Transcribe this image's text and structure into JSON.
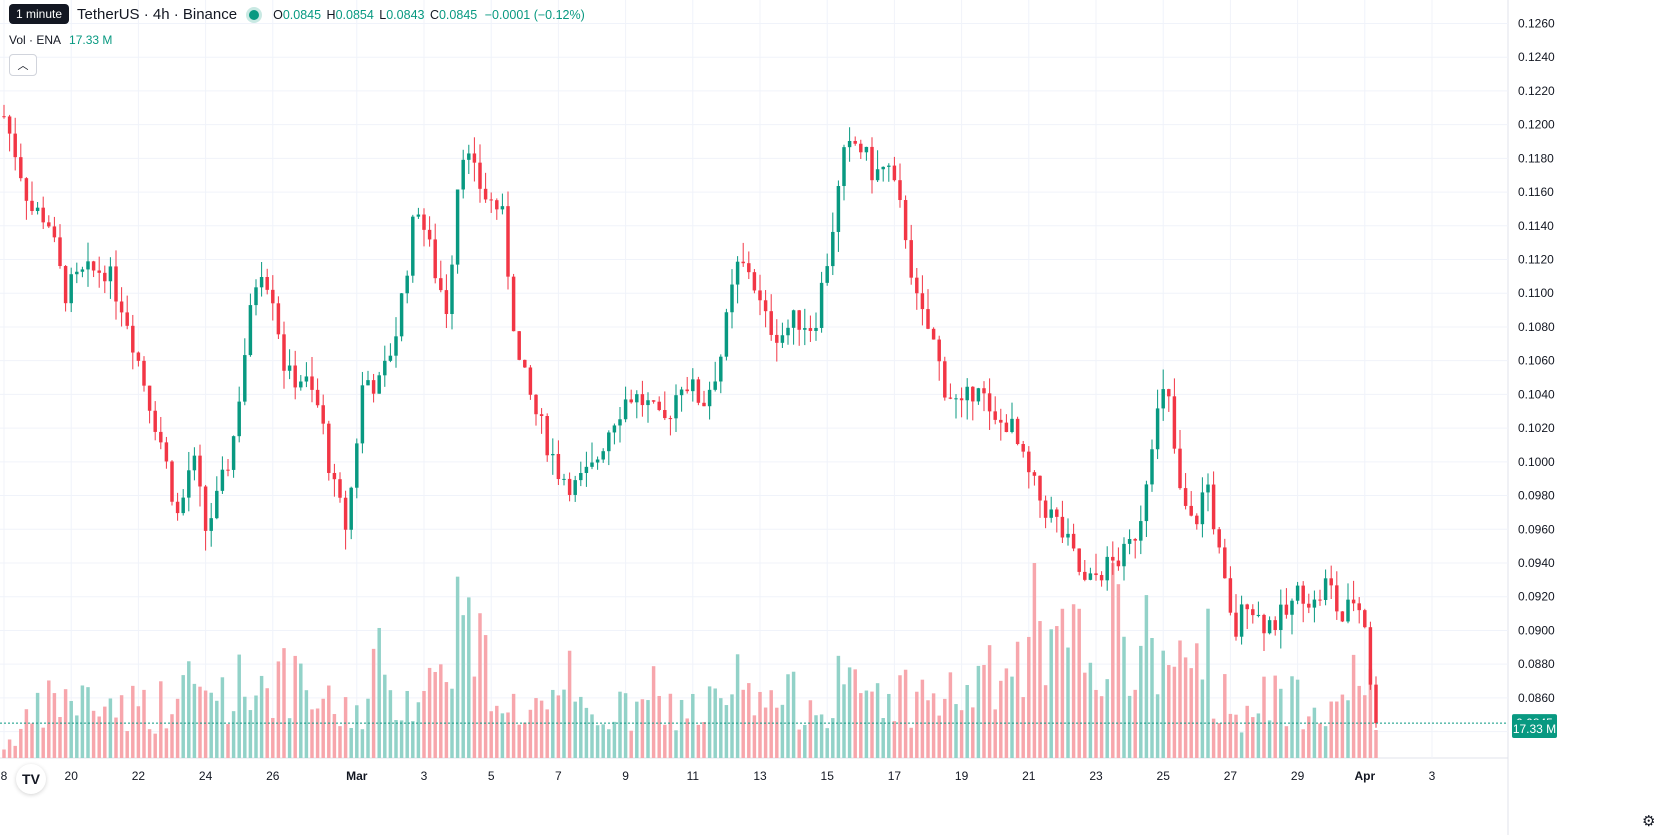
{
  "tooltip": {
    "text": "1 minute"
  },
  "header": {
    "symbol_title": "TetherUS · 4h · Binance",
    "ohlc": [
      {
        "key": "O",
        "value": "0.0845"
      },
      {
        "key": "H",
        "value": "0.0854"
      },
      {
        "key": "L",
        "value": "0.0843"
      },
      {
        "key": "C",
        "value": "0.0845"
      }
    ],
    "change": "−0.0001 (−0.12%)"
  },
  "volume_legend": {
    "label": "Vol · ENA",
    "value": "17.33 M"
  },
  "price_badge": {
    "text": "0.0845"
  },
  "volume_badge": {
    "text": "17.33 M"
  },
  "logo": {
    "text": "TV"
  },
  "colors": {
    "up": "#089981",
    "down": "#f23645",
    "up_volume": "#92d2c8",
    "down_volume": "#f7a6ac",
    "grid": "#f0f3fa",
    "text": "#131722"
  },
  "icons": {
    "collapse": "chevron-up-icon",
    "settings": "gear-icon",
    "logo": "tradingview-logo-icon"
  },
  "chart_data": {
    "type": "candlestick",
    "y_axis": {
      "range": [
        0.0828,
        0.127
      ],
      "ticks": [
        "0.1260",
        "0.1240",
        "0.1220",
        "0.1200",
        "0.1180",
        "0.1160",
        "0.1140",
        "0.1120",
        "0.1100",
        "0.1080",
        "0.1060",
        "0.1040",
        "0.1020",
        "0.1000",
        "0.0980",
        "0.0960",
        "0.0940",
        "0.0920",
        "0.0900",
        "0.0880",
        "0.0860",
        "0.0840"
      ]
    },
    "x_axis": {
      "labels": [
        {
          "label": "8",
          "day": 18
        },
        {
          "label": "20",
          "day": 20
        },
        {
          "label": "22",
          "day": 22
        },
        {
          "label": "24",
          "day": 24
        },
        {
          "label": "26",
          "day": 26
        },
        {
          "label": "Mar",
          "day": 28.5
        },
        {
          "label": "3",
          "day": 30.5
        },
        {
          "label": "5",
          "day": 32.5
        },
        {
          "label": "7",
          "day": 34.5
        },
        {
          "label": "9",
          "day": 36.5
        },
        {
          "label": "11",
          "day": 38.5
        },
        {
          "label": "13",
          "day": 40.5
        },
        {
          "label": "15",
          "day": 42.5
        },
        {
          "label": "17",
          "day": 44.5
        },
        {
          "label": "19",
          "day": 46.5
        },
        {
          "label": "21",
          "day": 48.5
        },
        {
          "label": "23",
          "day": 50.5
        },
        {
          "label": "25",
          "day": 52.5
        },
        {
          "label": "27",
          "day": 54.5
        },
        {
          "label": "29",
          "day": 56.5
        },
        {
          "label": "Apr",
          "day": 58.5
        },
        {
          "label": "3",
          "day": 60.5
        }
      ]
    },
    "price_anchors": [
      [
        18.0,
        0.1205
      ],
      [
        18.4,
        0.118
      ],
      [
        18.8,
        0.115
      ],
      [
        19.3,
        0.1145
      ],
      [
        19.8,
        0.11
      ],
      [
        20.3,
        0.111
      ],
      [
        21.0,
        0.1115
      ],
      [
        21.6,
        0.109
      ],
      [
        22.2,
        0.1045
      ],
      [
        22.7,
        0.101
      ],
      [
        23.2,
        0.0965
      ],
      [
        23.6,
        0.1005
      ],
      [
        24.0,
        0.096
      ],
      [
        24.4,
        0.098
      ],
      [
        24.8,
        0.101
      ],
      [
        25.2,
        0.107
      ],
      [
        25.6,
        0.112
      ],
      [
        26.0,
        0.11
      ],
      [
        26.4,
        0.105
      ],
      [
        26.9,
        0.105
      ],
      [
        27.4,
        0.103
      ],
      [
        27.8,
        0.0985
      ],
      [
        28.2,
        0.096
      ],
      [
        28.7,
        0.105
      ],
      [
        29.2,
        0.1045
      ],
      [
        29.7,
        0.108
      ],
      [
        30.3,
        0.1155
      ],
      [
        30.8,
        0.1115
      ],
      [
        31.2,
        0.109
      ],
      [
        31.6,
        0.119
      ],
      [
        32.0,
        0.117
      ],
      [
        32.4,
        0.1155
      ],
      [
        32.8,
        0.115
      ],
      [
        33.3,
        0.106
      ],
      [
        33.8,
        0.103
      ],
      [
        34.5,
        0.0995
      ],
      [
        35.0,
        0.0985
      ],
      [
        35.5,
        0.0995
      ],
      [
        36.1,
        0.1025
      ],
      [
        36.6,
        0.104
      ],
      [
        37.1,
        0.1035
      ],
      [
        37.6,
        0.102
      ],
      [
        38.2,
        0.105
      ],
      [
        38.8,
        0.1035
      ],
      [
        39.3,
        0.106
      ],
      [
        39.8,
        0.1115
      ],
      [
        40.2,
        0.1115
      ],
      [
        40.6,
        0.1085
      ],
      [
        41.1,
        0.1075
      ],
      [
        41.6,
        0.1085
      ],
      [
        42.1,
        0.108
      ],
      [
        42.5,
        0.112
      ],
      [
        43.0,
        0.118
      ],
      [
        43.4,
        0.119
      ],
      [
        43.9,
        0.117
      ],
      [
        44.3,
        0.1175
      ],
      [
        44.8,
        0.114
      ],
      [
        45.2,
        0.109
      ],
      [
        45.6,
        0.1075
      ],
      [
        46.0,
        0.1045
      ],
      [
        46.5,
        0.103
      ],
      [
        47.0,
        0.105
      ],
      [
        47.4,
        0.102
      ],
      [
        47.9,
        0.1025
      ],
      [
        48.4,
        0.0995
      ],
      [
        48.9,
        0.0975
      ],
      [
        49.3,
        0.0965
      ],
      [
        49.8,
        0.0945
      ],
      [
        50.2,
        0.0925
      ],
      [
        50.6,
        0.0935
      ],
      [
        51.0,
        0.094
      ],
      [
        51.4,
        0.0945
      ],
      [
        51.8,
        0.0965
      ],
      [
        52.2,
        0.102
      ],
      [
        52.6,
        0.1045
      ],
      [
        53.0,
        0.098
      ],
      [
        53.4,
        0.096
      ],
      [
        53.8,
        0.099
      ],
      [
        54.2,
        0.094
      ],
      [
        54.6,
        0.0895
      ],
      [
        55.0,
        0.092
      ],
      [
        55.4,
        0.0905
      ],
      [
        55.8,
        0.0905
      ],
      [
        56.2,
        0.091
      ],
      [
        56.6,
        0.0925
      ],
      [
        57.0,
        0.0915
      ],
      [
        57.4,
        0.093
      ],
      [
        57.8,
        0.0905
      ],
      [
        58.2,
        0.092
      ],
      [
        58.5,
        0.0905
      ],
      [
        58.8,
        0.0845
      ],
      [
        58.95,
        0.0845
      ]
    ],
    "volume_anchors": [
      [
        18,
        0.08
      ],
      [
        19.5,
        0.4
      ],
      [
        22.5,
        0.35
      ],
      [
        26,
        0.55
      ],
      [
        28,
        0.3
      ],
      [
        30.8,
        0.5
      ],
      [
        31.5,
        1.0
      ],
      [
        33,
        0.35
      ],
      [
        36,
        0.3
      ],
      [
        39,
        0.35
      ],
      [
        42,
        0.4
      ],
      [
        44,
        0.45
      ],
      [
        46,
        0.4
      ],
      [
        50.5,
        0.8
      ],
      [
        52.5,
        0.75
      ],
      [
        53.2,
        0.55
      ],
      [
        55,
        0.35
      ],
      [
        58.6,
        0.5
      ],
      [
        58.95,
        0.1
      ]
    ]
  }
}
